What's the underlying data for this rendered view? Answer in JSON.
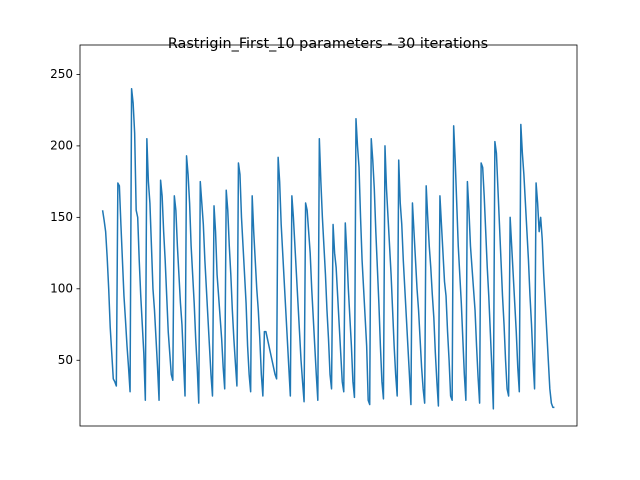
{
  "chart_data": {
    "type": "line",
    "title": "Rastrigin_First_10 parameters - 30 iterations",
    "ylim": [
      4,
      261.5
    ],
    "yticks": [
      50,
      100,
      150,
      200,
      250
    ],
    "grid": false,
    "series": [
      {
        "color": "#1f77b4",
        "values": [
          155,
          148,
          140,
          122,
          100,
          73,
          55,
          37,
          35,
          32,
          174,
          172,
          145,
          120,
          95,
          78,
          60,
          45,
          28,
          240,
          230,
          209,
          155,
          150,
          120,
          95,
          75,
          55,
          22,
          205,
          175,
          160,
          130,
          100,
          85,
          65,
          45,
          22,
          176,
          165,
          140,
          120,
          95,
          70,
          55,
          40,
          36,
          165,
          155,
          130,
          110,
          90,
          75,
          50,
          25,
          193,
          180,
          160,
          130,
          110,
          90,
          65,
          45,
          20,
          175,
          160,
          145,
          120,
          100,
          80,
          60,
          40,
          25,
          158,
          140,
          110,
          95,
          80,
          65,
          45,
          30,
          169,
          155,
          130,
          110,
          85,
          65,
          48,
          32,
          188,
          180,
          150,
          130,
          110,
          90,
          60,
          40,
          28,
          165,
          140,
          120,
          100,
          85,
          65,
          40,
          25,
          70,
          70,
          65,
          60,
          55,
          50,
          45,
          40,
          37,
          192,
          175,
          145,
          125,
          105,
          85,
          65,
          45,
          25,
          165,
          150,
          130,
          110,
          90,
          70,
          50,
          35,
          21,
          160,
          155,
          140,
          125,
          100,
          80,
          60,
          40,
          22,
          205,
          175,
          150,
          130,
          110,
          85,
          65,
          40,
          30,
          145,
          125,
          115,
          95,
          75,
          55,
          35,
          28,
          146,
          125,
          100,
          80,
          60,
          35,
          24,
          219,
          200,
          185,
          150,
          120,
          100,
          80,
          60,
          22,
          19,
          205,
          190,
          170,
          140,
          115,
          90,
          60,
          35,
          23,
          200,
          170,
          150,
          130,
          110,
          85,
          60,
          40,
          25,
          190,
          160,
          145,
          120,
          100,
          80,
          60,
          40,
          19,
          160,
          140,
          120,
          100,
          85,
          65,
          45,
          30,
          20,
          172,
          150,
          130,
          115,
          96,
          80,
          55,
          35,
          18,
          165,
          145,
          125,
          105,
          95,
          70,
          50,
          25,
          22,
          214,
          190,
          160,
          130,
          110,
          90,
          65,
          40,
          22,
          175,
          155,
          130,
          115,
          100,
          85,
          60,
          38,
          20,
          188,
          185,
          165,
          140,
          115,
          95,
          70,
          45,
          16,
          203,
          195,
          170,
          145,
          120,
          95,
          75,
          50,
          30,
          25,
          150,
          130,
          110,
          90,
          70,
          45,
          28,
          215,
          195,
          180,
          160,
          140,
          120,
          95,
          75,
          50,
          30,
          174,
          160,
          140,
          150,
          135,
          110,
          90,
          70,
          50,
          30,
          20,
          17,
          17
        ]
      }
    ]
  }
}
